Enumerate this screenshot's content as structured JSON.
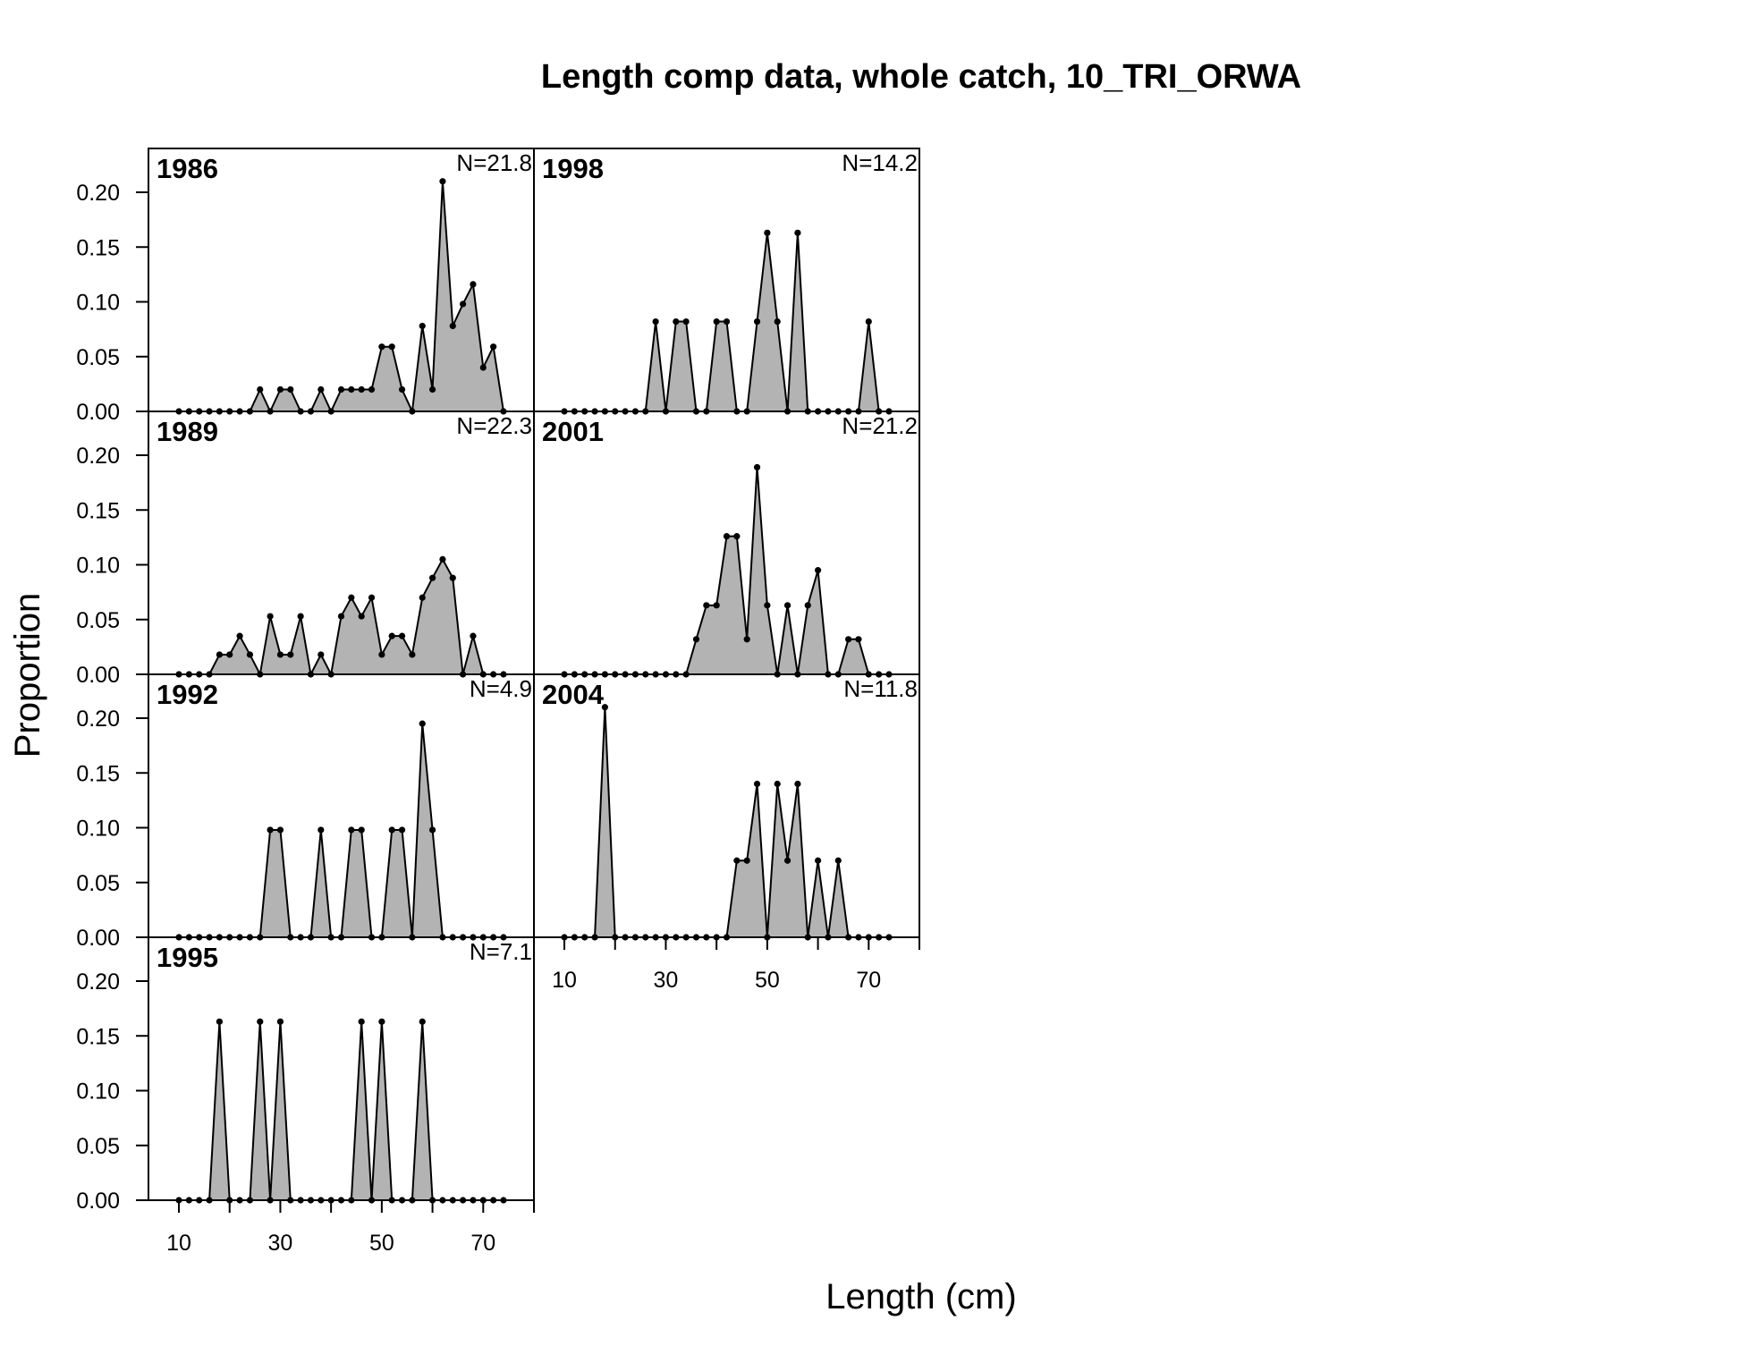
{
  "chart_data": {
    "type": "area",
    "title": "Length comp data, whole catch, 10_TRI_ORWA",
    "xlabel": "Length (cm)",
    "ylabel": "Proportion",
    "xlim": [
      4,
      80
    ],
    "ylim": [
      0,
      0.24
    ],
    "x_ticks": [
      10,
      30,
      50,
      70
    ],
    "y_ticks": [
      0.0,
      0.05,
      0.1,
      0.15,
      0.2
    ],
    "x_tick_labels": [
      "10",
      "30",
      "50",
      "70"
    ],
    "y_tick_labels": [
      "0.00",
      "0.05",
      "0.10",
      "0.15",
      "0.20"
    ],
    "bins": [
      10,
      12,
      14,
      16,
      18,
      20,
      22,
      24,
      26,
      28,
      30,
      32,
      34,
      36,
      38,
      40,
      42,
      44,
      46,
      48,
      50,
      52,
      54,
      56,
      58,
      60,
      62,
      64,
      66,
      68,
      70,
      72,
      74
    ],
    "fill_color": "#b3b3b3",
    "line_color": "#000000",
    "panels": [
      {
        "year": "1986",
        "n_label": "N=21.8",
        "col": 0,
        "row": 0,
        "values": [
          0,
          0,
          0,
          0,
          0,
          0,
          0,
          0,
          0.02,
          0,
          0.02,
          0.02,
          0,
          0,
          0.02,
          0,
          0.02,
          0.02,
          0.02,
          0.02,
          0.059,
          0.059,
          0.02,
          0,
          0.078,
          0.02,
          0.21,
          0.078,
          0.098,
          0.116,
          0.04,
          0.059,
          0
        ]
      },
      {
        "year": "1989",
        "n_label": "N=22.3",
        "col": 0,
        "row": 1,
        "values": [
          0,
          0,
          0,
          0,
          0.018,
          0.018,
          0.035,
          0.018,
          0,
          0.053,
          0.018,
          0.018,
          0.053,
          0,
          0.018,
          0,
          0.053,
          0.07,
          0.053,
          0.07,
          0.018,
          0.035,
          0.035,
          0.018,
          0.07,
          0.088,
          0.105,
          0.088,
          0,
          0.035,
          0,
          0,
          0
        ]
      },
      {
        "year": "1992",
        "n_label": "N=4.9",
        "col": 0,
        "row": 2,
        "values": [
          0,
          0,
          0,
          0,
          0,
          0,
          0,
          0,
          0,
          0.098,
          0.098,
          0,
          0,
          0,
          0.098,
          0,
          0,
          0.098,
          0.098,
          0,
          0,
          0.098,
          0.098,
          0,
          0.195,
          0.098,
          0,
          0,
          0,
          0,
          0,
          0,
          0
        ]
      },
      {
        "year": "1995",
        "n_label": "N=7.1",
        "col": 0,
        "row": 3,
        "values": [
          0,
          0,
          0,
          0,
          0.163,
          0,
          0,
          0,
          0.163,
          0,
          0.163,
          0,
          0,
          0,
          0,
          0,
          0,
          0,
          0.163,
          0,
          0.163,
          0,
          0,
          0,
          0.163,
          0,
          0,
          0,
          0,
          0,
          0,
          0,
          0
        ]
      },
      {
        "year": "1998",
        "n_label": "N=14.2",
        "col": 1,
        "row": 0,
        "values": [
          0,
          0,
          0,
          0,
          0,
          0,
          0,
          0,
          0,
          0.082,
          0,
          0.082,
          0.082,
          0,
          0,
          0.082,
          0.082,
          0,
          0,
          0.082,
          0.163,
          0.082,
          0,
          0.163,
          0,
          0,
          0,
          0,
          0,
          0,
          0.082,
          0,
          0
        ]
      },
      {
        "year": "2001",
        "n_label": "N=21.2",
        "col": 1,
        "row": 1,
        "values": [
          0,
          0,
          0,
          0,
          0,
          0,
          0,
          0,
          0,
          0,
          0,
          0,
          0,
          0.032,
          0.063,
          0.063,
          0.126,
          0.126,
          0.032,
          0.189,
          0.063,
          0,
          0.063,
          0,
          0.063,
          0.095,
          0,
          0,
          0.032,
          0.032,
          0,
          0,
          0
        ]
      },
      {
        "year": "2004",
        "n_label": "N=11.8",
        "col": 1,
        "row": 2,
        "values": [
          0,
          0,
          0,
          0,
          0.21,
          0,
          0,
          0,
          0,
          0,
          0,
          0,
          0,
          0,
          0,
          0,
          0,
          0.07,
          0.07,
          0.14,
          0,
          0.14,
          0.07,
          0.14,
          0,
          0.07,
          0,
          0.07,
          0,
          0,
          0,
          0,
          0
        ]
      }
    ]
  }
}
